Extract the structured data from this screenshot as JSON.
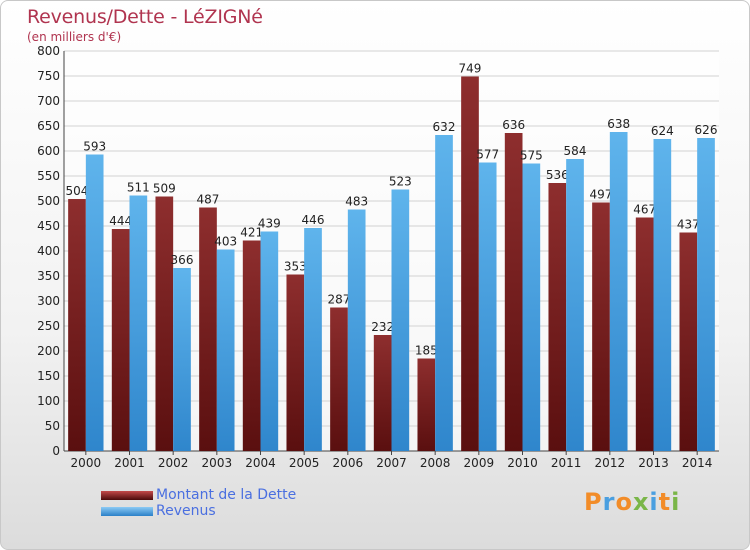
{
  "header": {
    "title": "Revenus/Dette - LéZIGNé",
    "subtitle": "(en milliers d'€)"
  },
  "chart_data": {
    "type": "bar",
    "categories": [
      "2000",
      "2001",
      "2002",
      "2003",
      "2004",
      "2005",
      "2006",
      "2007",
      "2008",
      "2009",
      "2010",
      "2011",
      "2012",
      "2013",
      "2014"
    ],
    "series": [
      {
        "name": "Montant de la Dette",
        "color": "#7a1f1f",
        "values": [
          504,
          444,
          509,
          487,
          421,
          353,
          287,
          232,
          185,
          749,
          636,
          536,
          497,
          467,
          437
        ]
      },
      {
        "name": "Revenus",
        "color": "#3d9de0",
        "values": [
          593,
          511,
          366,
          403,
          439,
          446,
          483,
          523,
          632,
          577,
          575,
          584,
          638,
          624,
          626
        ]
      }
    ],
    "value_labels": [
      [
        "504",
        "444",
        "509",
        "487",
        "421",
        "353",
        "287",
        "232",
        "185",
        "749",
        "636",
        "536",
        "497",
        "467",
        "437"
      ],
      [
        "593",
        "511",
        "366",
        "403",
        "439",
        "446",
        "483",
        "523",
        "632",
        "577",
        "575",
        "584",
        "638",
        "624",
        "626"
      ]
    ],
    "ylim": [
      0,
      800
    ],
    "yticks": [
      0,
      50,
      100,
      150,
      200,
      250,
      300,
      350,
      400,
      450,
      500,
      550,
      600,
      650,
      700,
      750,
      800
    ],
    "grid": true,
    "legend_position": "bottom-left"
  },
  "legend": {
    "items": [
      "Montant de la Dette",
      "Revenus"
    ]
  },
  "logo": {
    "letters": [
      "P",
      "r",
      "o",
      "x",
      "i",
      "t",
      "i"
    ],
    "colors": [
      "#f28c28",
      "#4a9fe0",
      "#f28c28",
      "#7ab648",
      "#4a9fe0",
      "#f28c28",
      "#7ab648"
    ]
  }
}
